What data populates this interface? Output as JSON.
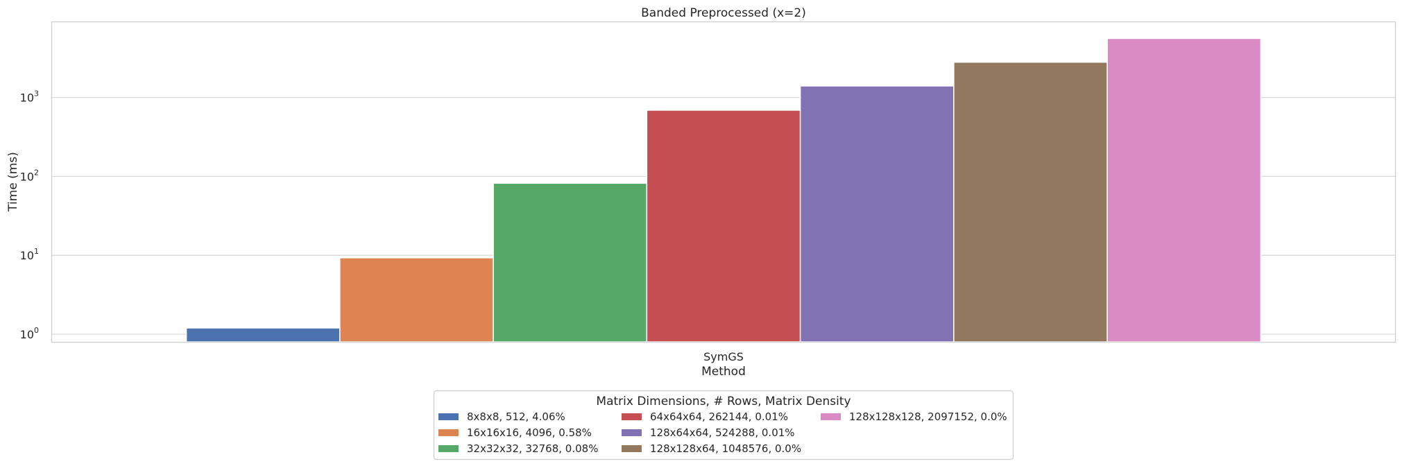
{
  "chart_data": {
    "type": "bar",
    "title": "Banded Preprocessed (x=2)",
    "xlabel": "Method",
    "ylabel": "Time (ms)",
    "yscale": "log",
    "ylim": [
      0.8,
      9000
    ],
    "yticks": [
      {
        "value": 1,
        "base": "10",
        "exp": "0"
      },
      {
        "value": 10,
        "base": "10",
        "exp": "1"
      },
      {
        "value": 100,
        "base": "10",
        "exp": "2"
      },
      {
        "value": 1000,
        "base": "10",
        "exp": "3"
      }
    ],
    "categories": [
      "SymGS"
    ],
    "grid": true,
    "legend_title": "Matrix Dimensions, # Rows, Matrix Density",
    "legend_position": "bottom-center",
    "series": [
      {
        "name": "8x8x8, 512, 4.06%",
        "color": "#4c72b0",
        "values": [
          1.2
        ]
      },
      {
        "name": "16x16x16, 4096, 0.58%",
        "color": "#dd8452",
        "values": [
          9.3
        ]
      },
      {
        "name": "32x32x32, 32768, 0.08%",
        "color": "#55a868",
        "values": [
          82
        ]
      },
      {
        "name": "64x64x64, 262144, 0.01%",
        "color": "#c44e52",
        "values": [
          690
        ]
      },
      {
        "name": "128x64x64, 524288, 0.01%",
        "color": "#8172b3",
        "values": [
          1400
        ]
      },
      {
        "name": "128x128x64, 1048576, 0.0%",
        "color": "#937860",
        "values": [
          2800
        ]
      },
      {
        "name": "128x128x128, 2097152, 0.0%",
        "color": "#da8bc3",
        "values": [
          5600
        ]
      }
    ]
  }
}
